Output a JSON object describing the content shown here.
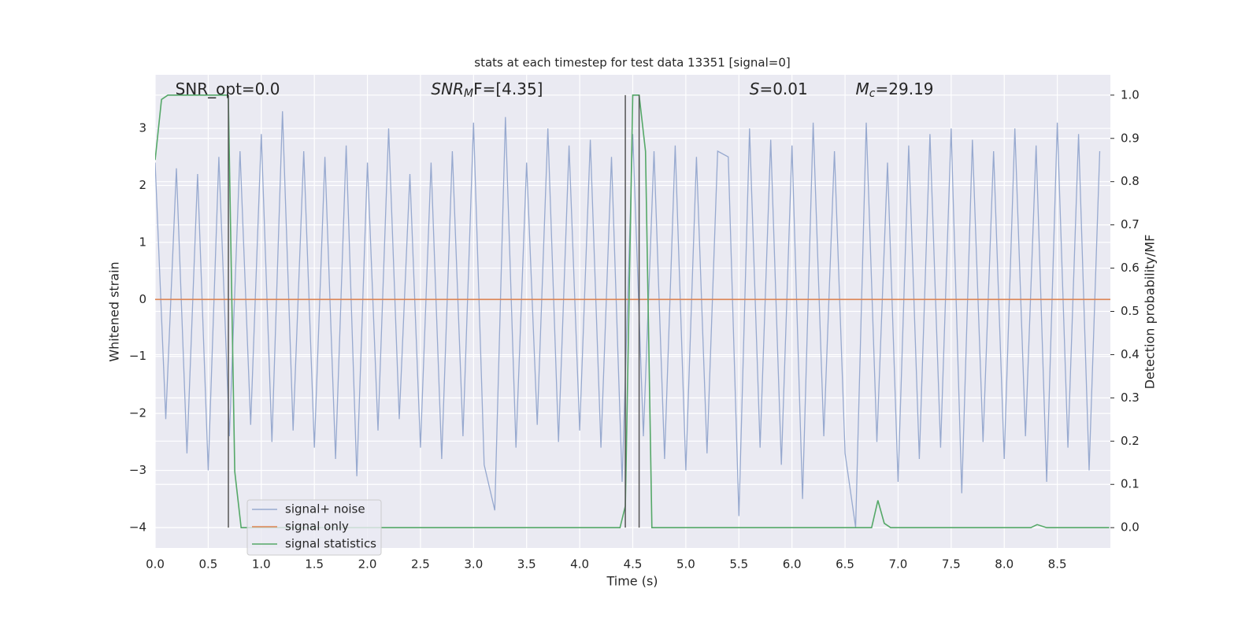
{
  "chart_data": {
    "type": "line",
    "title": "stats at each timestep for test data 13351 [signal=0]",
    "xlabel": "Time (s)",
    "ylabel": "Whitened strain",
    "y2label": "Detection probability/MF",
    "annotations": [
      {
        "text": "SNR_opt=0.0"
      },
      {
        "italic": "SNR",
        "sub": "M",
        "text": "F=[4.35]"
      },
      {
        "italic": "S",
        "text": "=0.01"
      },
      {
        "italic": "M",
        "sub": "c",
        "text": "=29.19"
      }
    ],
    "xlim": [
      0,
      9.0
    ],
    "ylim": [
      -4.36,
      3.94
    ],
    "y2lim": [
      -0.047,
      1.047
    ],
    "xticks": [
      {
        "value": 0,
        "label": "0.0"
      },
      0.5,
      {
        "value": 1,
        "label": "1.0"
      },
      1.5,
      {
        "value": 2,
        "label": "2.0"
      },
      2.5,
      {
        "value": 3,
        "label": "3.0"
      },
      3.5,
      {
        "value": 4,
        "label": "4.0"
      },
      4.5,
      {
        "value": 5,
        "label": "5.0"
      },
      5.5,
      {
        "value": 6,
        "label": "6.0"
      },
      6.5,
      {
        "value": 7,
        "label": "7.0"
      },
      7.5,
      {
        "value": 8,
        "label": "8.0"
      },
      8.5
    ],
    "yticks": [
      {
        "value": -4,
        "label": "−4"
      },
      {
        "value": -3,
        "label": "−3"
      },
      {
        "value": -2,
        "label": "−2"
      },
      {
        "value": -1,
        "label": "−1"
      },
      0,
      1,
      2,
      3
    ],
    "y2ticks": [
      {
        "value": 0,
        "label": "0.0"
      },
      0.1,
      0.2,
      0.3,
      0.4,
      0.5,
      0.6,
      0.7,
      0.8,
      0.9,
      {
        "value": 1,
        "label": "1.0"
      }
    ],
    "grid": true,
    "legend_loc": "lower left",
    "series": [
      {
        "name": "signal+ noise",
        "color": "#97a9cf",
        "x": [
          0,
          0.1,
          0.2,
          0.3,
          0.4,
          0.5,
          0.6,
          0.7,
          0.8,
          0.9,
          1,
          1.1,
          1.2,
          1.3,
          1.4,
          1.5,
          1.6,
          1.7,
          1.8,
          1.9,
          2,
          2.1,
          2.2,
          2.3,
          2.4,
          2.5,
          2.6,
          2.7,
          2.8,
          2.9,
          3,
          3.1,
          3.2,
          3.3,
          3.4,
          3.5,
          3.6,
          3.7,
          3.8,
          3.9,
          4,
          4.1,
          4.2,
          4.3,
          4.4,
          4.5,
          4.6,
          4.7,
          4.8,
          4.9,
          5,
          5.1,
          5.2,
          5.3,
          5.4,
          5.5,
          5.6,
          5.7,
          5.8,
          5.9,
          6,
          6.1,
          6.2,
          6.3,
          6.4,
          6.5,
          6.6,
          6.7,
          6.8,
          6.9,
          7,
          7.1,
          7.2,
          7.3,
          7.4,
          7.5,
          7.6,
          7.7,
          7.8,
          7.9,
          8,
          8.1,
          8.2,
          8.3,
          8.4,
          8.5,
          8.6,
          8.7,
          8.8,
          8.9
        ],
        "values": [
          2.4,
          -2.1,
          2.3,
          -2.7,
          2.2,
          -3.0,
          2.5,
          -2.4,
          2.6,
          -2.2,
          2.9,
          -2.5,
          3.3,
          -2.3,
          2.6,
          -2.6,
          2.5,
          -2.8,
          2.7,
          -3.1,
          2.4,
          -2.3,
          3.0,
          -2.1,
          2.2,
          -2.6,
          2.4,
          -2.8,
          2.6,
          -2.4,
          3.1,
          -2.9,
          -3.7,
          3.2,
          -2.6,
          2.4,
          -2.2,
          3.0,
          -2.5,
          2.7,
          -2.3,
          2.8,
          -2.6,
          2.5,
          -3.2,
          2.9,
          -2.4,
          2.6,
          -2.8,
          2.7,
          -3.0,
          2.5,
          -2.7,
          2.6,
          2.5,
          -3.8,
          3.0,
          -2.6,
          2.8,
          -2.9,
          2.7,
          -3.5,
          3.1,
          -2.4,
          2.6,
          -2.7,
          -4.0,
          3.1,
          -2.5,
          2.4,
          -3.2,
          2.7,
          -2.8,
          2.9,
          -2.6,
          3.0,
          -3.4,
          2.8,
          -2.5,
          2.6,
          -2.8,
          3.0,
          -2.4,
          2.7,
          -3.2,
          3.1,
          -2.6,
          2.9,
          -3.0,
          2.6
        ]
      },
      {
        "name": "signal only",
        "color": "#dd8452",
        "x": [
          0,
          9.0
        ],
        "values": [
          0,
          0
        ]
      },
      {
        "name": "signal statistics",
        "color": "#55a868",
        "axis": "y2",
        "x": [
          0,
          0.06,
          0.12,
          0.68,
          0.69,
          0.75,
          0.81,
          4.38,
          4.43,
          4.5,
          4.56,
          4.62,
          4.68,
          6.75,
          6.81,
          6.87,
          6.93,
          8.25,
          8.31,
          8.4,
          8.99
        ],
        "values": [
          0.85,
          0.99,
          1.0,
          1.0,
          0.99,
          0.13,
          0.0,
          0.0,
          0.05,
          1.0,
          1.0,
          0.87,
          0.0,
          0.0,
          0.063,
          0.01,
          0.0,
          0.0,
          0.007,
          0.0,
          0.0
        ]
      }
    ],
    "vlines": {
      "color": "#555555",
      "x": [
        0.69,
        4.43,
        4.56
      ],
      "y2": [
        0,
        1
      ]
    }
  }
}
